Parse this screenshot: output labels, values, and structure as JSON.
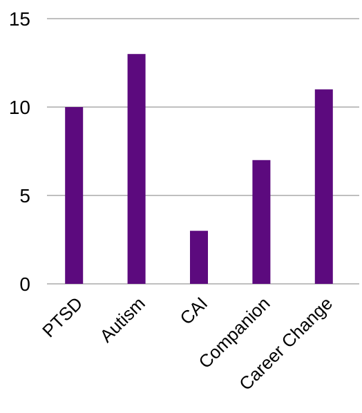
{
  "chart_data": {
    "type": "bar",
    "title": "",
    "xlabel": "",
    "ylabel": "",
    "categories": [
      "PTSD",
      "Autism",
      "CAI",
      "Companion",
      "Career Change"
    ],
    "values": [
      10,
      13,
      3,
      7,
      11
    ],
    "ylim": [
      0,
      15
    ],
    "yticks": [
      0,
      5,
      10,
      15
    ],
    "grid": true,
    "legend": "none",
    "colors": {
      "bar": "#5c0a7e",
      "grid": "#bfbfbf",
      "axis": "#bfbfbf"
    }
  }
}
